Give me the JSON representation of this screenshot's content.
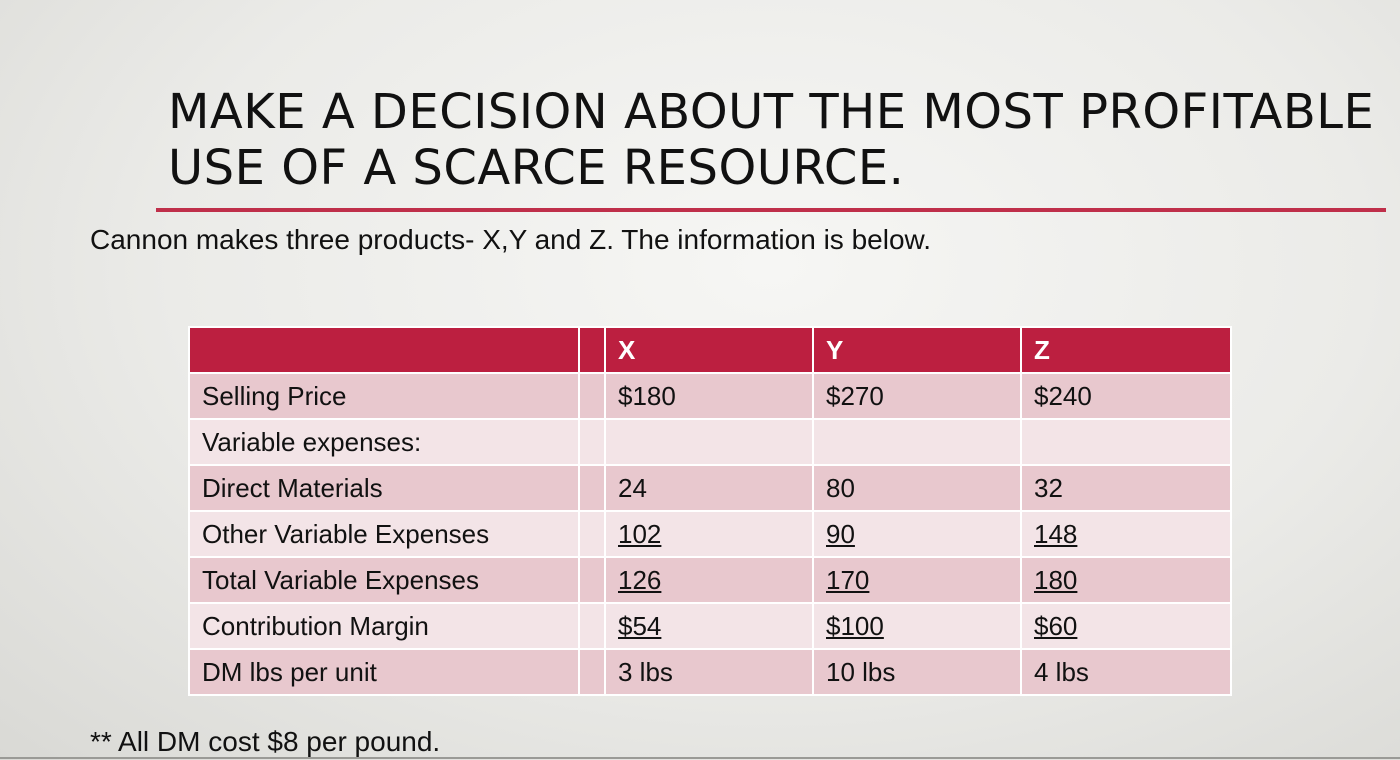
{
  "slide": {
    "title_line1": "MAKE A DECISION ABOUT THE MOST PROFITABLE",
    "title_line2": "USE OF A SCARCE RESOURCE.",
    "intro": "Cannon makes three products- X,Y and Z. The information is below.",
    "footnote": "** All DM cost $8 per pound.",
    "accent_color": "#bc1f40"
  },
  "table": {
    "headers": [
      "",
      "",
      "X",
      "Y",
      "Z"
    ],
    "rows": [
      {
        "label": "Selling Price",
        "x": "$180",
        "y": "$270",
        "z": "$240",
        "underline": false
      },
      {
        "label": "Variable expenses:",
        "x": "",
        "y": "",
        "z": "",
        "underline": false
      },
      {
        "label": "Direct Materials",
        "x": "24",
        "y": "80",
        "z": "32",
        "underline": false
      },
      {
        "label": "Other Variable Expenses",
        "x": "102",
        "y": "90",
        "z": "148",
        "underline": true
      },
      {
        "label": "Total Variable Expenses",
        "x": "126",
        "y": "170",
        "z": "180",
        "underline": true
      },
      {
        "label": "Contribution Margin",
        "x": "$54",
        "y": "$100",
        "z": "$60",
        "underline": true
      },
      {
        "label": "DM lbs per unit",
        "x": "3 lbs",
        "y": "10 lbs",
        "z": "4 lbs",
        "underline": false
      }
    ]
  }
}
